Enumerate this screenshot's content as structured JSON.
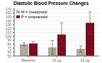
{
  "chart_data": {
    "type": "bar",
    "title": "Diastolic Blood Pressure Changes",
    "categories": [
      "Baseline",
      "16 μg",
      "32 μg"
    ],
    "series": [
      {
        "name": "M = metoprolol",
        "color": "#b0a898",
        "values": [
          80,
          72,
          68
        ],
        "errors": [
          4,
          18,
          8
        ]
      },
      {
        "name": "P = propranolol",
        "color": "#7a0c1e",
        "values": [
          82,
          105,
          135
        ],
        "errors": [
          5,
          30,
          28
        ]
      }
    ],
    "ylim": [
      50,
      170
    ],
    "yticks": [
      50,
      60,
      70,
      80,
      90,
      100,
      110,
      120,
      130,
      140,
      150,
      160,
      170
    ],
    "grid": true,
    "legend": "upper left"
  }
}
